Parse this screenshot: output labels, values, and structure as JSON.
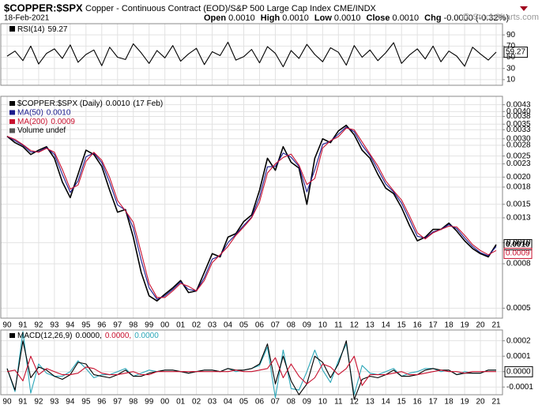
{
  "header": {
    "symbol": "$COPPER:$SPX",
    "description": "Copper - Continuous Contract (EOD)/S&P 500 Large Cap Index CME/INDX",
    "date": "18-Feb-2021",
    "quote": [
      {
        "label": "Open",
        "value": "0.0010"
      },
      {
        "label": "High",
        "value": "0.0010"
      },
      {
        "label": "Low",
        "value": "0.0010"
      },
      {
        "label": "Close",
        "value": "0.0010"
      },
      {
        "label": "Chg",
        "value": "-0.0000 (-0.32%)"
      }
    ],
    "watermark": "@ StockCharts.com"
  },
  "chart_data": [
    {
      "type": "line",
      "label": "RSI(14)",
      "grid": true,
      "x": [
        1990,
        1990.5,
        1991,
        1991.5,
        1992,
        1992.5,
        1993,
        1993.5,
        1994,
        1994.5,
        1995,
        1995.5,
        1996,
        1996.5,
        1997,
        1997.5,
        1998,
        1998.5,
        1999,
        1999.5,
        2000,
        2000.5,
        2001,
        2001.5,
        2002,
        2002.5,
        2003,
        2003.5,
        2004,
        2004.5,
        2005,
        2005.5,
        2006,
        2006.5,
        2007,
        2007.5,
        2008,
        2008.5,
        2009,
        2009.5,
        2010,
        2010.5,
        2011,
        2011.5,
        2012,
        2012.5,
        2013,
        2013.5,
        2014,
        2014.5,
        2015,
        2015.5,
        2016,
        2016.5,
        2017,
        2017.5,
        2018,
        2018.5,
        2019,
        2019.5,
        2020,
        2020.5,
        2021
      ],
      "xlim": [
        1989.6,
        2021.4
      ],
      "series": [
        {
          "color": "#000000",
          "legend_value": "59.27",
          "values": [
            52,
            61,
            44,
            70,
            38,
            57,
            65,
            48,
            72,
            41,
            55,
            63,
            35,
            68,
            50,
            46,
            74,
            58,
            39,
            62,
            49,
            71,
            43,
            56,
            66,
            37,
            60,
            53,
            77,
            45,
            51,
            64,
            40,
            69,
            57,
            33,
            62,
            48,
            73,
            55,
            42,
            67,
            59,
            36,
            71,
            50,
            63,
            44,
            58,
            76,
            39,
            54,
            65,
            47,
            70,
            42,
            61,
            52,
            34,
            68,
            56,
            45,
            59.27
          ]
        }
      ],
      "ylim": [
        0,
        110
      ],
      "yticks": [
        90,
        70,
        50,
        30,
        10
      ]
    },
    {
      "type": "line",
      "log_scale": true,
      "grid": true,
      "volume_legend": "Volume undef",
      "x": [
        1990,
        1990.5,
        1991,
        1991.5,
        1992,
        1992.5,
        1993,
        1993.5,
        1994,
        1994.5,
        1995,
        1995.5,
        1996,
        1996.5,
        1997,
        1997.5,
        1998,
        1998.5,
        1999,
        1999.5,
        2000,
        2000.5,
        2001,
        2001.5,
        2002,
        2002.5,
        2003,
        2003.5,
        2004,
        2004.5,
        2005,
        2005.5,
        2006,
        2006.5,
        2007,
        2007.5,
        2008,
        2008.5,
        2009,
        2009.5,
        2010,
        2010.5,
        2011,
        2011.5,
        2012,
        2012.5,
        2013,
        2013.5,
        2014,
        2014.5,
        2015,
        2015.5,
        2016,
        2016.5,
        2017,
        2017.5,
        2018,
        2018.5,
        2019,
        2019.5,
        2020,
        2020.5,
        2021
      ],
      "xlim": [
        1989.6,
        2021.4
      ],
      "xticks": [
        {
          "value": 1990,
          "label": "90"
        },
        {
          "value": 1991,
          "label": "91"
        },
        {
          "value": 1992,
          "label": "92"
        },
        {
          "value": 1993,
          "label": "93"
        },
        {
          "value": 1994,
          "label": "94"
        },
        {
          "value": 1995,
          "label": "95"
        },
        {
          "value": 1996,
          "label": "96"
        },
        {
          "value": 1997,
          "label": "97"
        },
        {
          "value": 1998,
          "label": "98"
        },
        {
          "value": 1999,
          "label": "99"
        },
        {
          "value": 2000,
          "label": "00"
        },
        {
          "value": 2001,
          "label": "01"
        },
        {
          "value": 2002,
          "label": "02"
        },
        {
          "value": 2003,
          "label": "03"
        },
        {
          "value": 2004,
          "label": "04"
        },
        {
          "value": 2005,
          "label": "05"
        },
        {
          "value": 2006,
          "label": "06"
        },
        {
          "value": 2007,
          "label": "07"
        },
        {
          "value": 2008,
          "label": "08"
        },
        {
          "value": 2009,
          "label": "09"
        },
        {
          "value": 2010,
          "label": "10"
        },
        {
          "value": 2011,
          "label": "11"
        },
        {
          "value": 2012,
          "label": "12"
        },
        {
          "value": 2013,
          "label": "13"
        },
        {
          "value": 2014,
          "label": "14"
        },
        {
          "value": 2015,
          "label": "15"
        },
        {
          "value": 2016,
          "label": "16"
        },
        {
          "value": 2017,
          "label": "17"
        },
        {
          "value": 2018,
          "label": "18"
        },
        {
          "value": 2019,
          "label": "19"
        },
        {
          "value": 2020,
          "label": "20"
        },
        {
          "value": 2021,
          "label": "21"
        }
      ],
      "series": [
        {
          "name": "$COPPER:$SPX (Daily)",
          "color": "#000000",
          "last_label": "0.0010",
          "legend_date": "(17 Feb)",
          "values": [
            0.00308,
            0.00288,
            0.00276,
            0.00254,
            0.00266,
            0.00276,
            0.00244,
            0.0019,
            0.00161,
            0.00206,
            0.00266,
            0.00254,
            0.00224,
            0.00174,
            0.00138,
            0.00142,
            0.00106,
            0.00073,
            0.00057,
            0.00054,
            0.00058,
            0.00062,
            0.00067,
            0.00059,
            0.0006,
            0.00073,
            0.00089,
            0.00086,
            0.00106,
            0.0011,
            0.00125,
            0.00134,
            0.00174,
            0.00244,
            0.00215,
            0.00276,
            0.00234,
            0.0022,
            0.0015,
            0.00244,
            0.003,
            0.00288,
            0.00326,
            0.00346,
            0.00313,
            0.00266,
            0.00244,
            0.00206,
            0.00178,
            0.00168,
            0.00145,
            0.0012,
            0.00102,
            0.00106,
            0.00115,
            0.00115,
            0.00123,
            0.00113,
            0.00102,
            0.00094,
            0.00089,
            0.00086,
            0.00098
          ]
        },
        {
          "name": "MA(50)",
          "color": "#1a1a8c",
          "legend_value": "0.0010",
          "values": [
            0.00308,
            0.00294,
            0.0028,
            0.00261,
            0.00262,
            0.00273,
            0.00254,
            0.00206,
            0.0017,
            0.00192,
            0.00248,
            0.00258,
            0.00233,
            0.00189,
            0.00149,
            0.00141,
            0.00117,
            0.00083,
            0.00062,
            0.00055,
            0.00057,
            0.00061,
            0.00066,
            0.00061,
            0.0006,
            0.00069,
            0.00084,
            0.00087,
            0.001,
            0.00109,
            0.0012,
            0.00131,
            0.00162,
            0.00223,
            0.00224,
            0.00258,
            0.00247,
            0.00224,
            0.00171,
            0.00216,
            0.00283,
            0.00292,
            0.00315,
            0.0034,
            0.00323,
            0.0028,
            0.00251,
            0.00217,
            0.00186,
            0.00171,
            0.00152,
            0.00128,
            0.00107,
            0.00105,
            0.00112,
            0.00115,
            0.00121,
            0.00116,
            0.00105,
            0.00096,
            0.0009,
            0.00087,
            0.00096
          ]
        },
        {
          "name": "MA(200)",
          "color": "#c8102e",
          "legend_value": "0.0009",
          "values": [
            0.00308,
            0.00298,
            0.00282,
            0.00265,
            0.0026,
            0.00271,
            0.0026,
            0.00217,
            0.00176,
            0.00184,
            0.00236,
            0.0026,
            0.00239,
            0.00199,
            0.00156,
            0.0014,
            0.00124,
            0.0009,
            0.00065,
            0.00056,
            0.00056,
            0.0006,
            0.00065,
            0.00063,
            0.0006,
            0.00067,
            0.00081,
            0.00088,
            0.00096,
            0.00108,
            0.00118,
            0.0013,
            0.00154,
            0.00209,
            0.0023,
            0.00246,
            0.00255,
            0.00227,
            0.00185,
            0.00197,
            0.00272,
            0.00294,
            0.00307,
            0.00336,
            0.0033,
            0.0029,
            0.00255,
            0.00225,
            0.00192,
            0.00173,
            0.00157,
            0.00133,
            0.00111,
            0.00104,
            0.00111,
            0.00115,
            0.00119,
            0.00118,
            0.00108,
            0.00098,
            0.00092,
            0.00088,
            0.00092
          ]
        }
      ],
      "ylim": [
        0.00045,
        0.0047
      ],
      "yticks": [
        0.0043,
        {
          "value": 0.004,
          "label": "0.0040"
        },
        0.0038,
        0.0035,
        0.0033,
        {
          "value": 0.003,
          "label": "0.0030"
        },
        0.0028,
        0.0025,
        0.0023,
        {
          "value": 0.002,
          "label": "0.0020"
        },
        0.0018,
        0.0015,
        0.0013,
        {
          "value": 0.001,
          "label": "0.0010"
        },
        0.0008,
        0.0005
      ]
    },
    {
      "type": "line",
      "label": "MACD(12,26,9)",
      "grid": true,
      "x": [
        1990,
        1990.5,
        1991,
        1991.5,
        1992,
        1992.5,
        1993,
        1993.5,
        1994,
        1994.5,
        1995,
        1995.5,
        1996,
        1996.5,
        1997,
        1997.5,
        1998,
        1998.5,
        1999,
        1999.5,
        2000,
        2000.5,
        2001,
        2001.5,
        2002,
        2002.5,
        2003,
        2003.5,
        2004,
        2004.5,
        2005,
        2005.5,
        2006,
        2006.5,
        2007,
        2007.5,
        2008,
        2008.5,
        2009,
        2009.5,
        2010,
        2010.5,
        2011,
        2011.5,
        2012,
        2012.5,
        2013,
        2013.5,
        2014,
        2014.5,
        2015,
        2015.5,
        2016,
        2016.5,
        2017,
        2017.5,
        2018,
        2018.5,
        2019,
        2019.5,
        2020,
        2020.5,
        2021
      ],
      "xlim": [
        1989.6,
        2021.4
      ],
      "xticks": [
        {
          "value": 1990,
          "label": "90"
        },
        {
          "value": 1991,
          "label": "91"
        },
        {
          "value": 1992,
          "label": "92"
        },
        {
          "value": 1993,
          "label": "93"
        },
        {
          "value": 1994,
          "label": "94"
        },
        {
          "value": 1995,
          "label": "95"
        },
        {
          "value": 1996,
          "label": "96"
        },
        {
          "value": 1997,
          "label": "97"
        },
        {
          "value": 1998,
          "label": "98"
        },
        {
          "value": 1999,
          "label": "99"
        },
        {
          "value": 2000,
          "label": "00"
        },
        {
          "value": 2001,
          "label": "01"
        },
        {
          "value": 2002,
          "label": "02"
        },
        {
          "value": 2003,
          "label": "03"
        },
        {
          "value": 2004,
          "label": "04"
        },
        {
          "value": 2005,
          "label": "05"
        },
        {
          "value": 2006,
          "label": "06"
        },
        {
          "value": 2007,
          "label": "07"
        },
        {
          "value": 2008,
          "label": "08"
        },
        {
          "value": 2009,
          "label": "09"
        },
        {
          "value": 2010,
          "label": "10"
        },
        {
          "value": 2011,
          "label": "11"
        },
        {
          "value": 2012,
          "label": "12"
        },
        {
          "value": 2013,
          "label": "13"
        },
        {
          "value": 2014,
          "label": "14"
        },
        {
          "value": 2015,
          "label": "15"
        },
        {
          "value": 2016,
          "label": "16"
        },
        {
          "value": 2017,
          "label": "17"
        },
        {
          "value": 2018,
          "label": "18"
        },
        {
          "value": 2019,
          "label": "19"
        },
        {
          "value": 2020,
          "label": "20"
        },
        {
          "value": 2021,
          "label": "21"
        }
      ],
      "series": [
        {
          "color": "#2aa6b8",
          "legend_value": "0.0000",
          "values": [
            2e-05,
            -0.00013,
            0.00026,
            -0.00014,
            5e-05,
            -1e-05,
            -3e-05,
            -3e-05,
            0,
            7e-05,
            2e-05,
            -4e-05,
            -2e-05,
            -2e-05,
            0,
            2e-05,
            -3e-05,
            -1e-05,
            1e-05,
            0,
            1e-05,
            1e-05,
            0,
            -1e-05,
            0,
            1e-05,
            1e-05,
            0,
            2e-05,
            0,
            1e-05,
            2e-05,
            4e-05,
            0.00016,
            -0.00017,
            0.00014,
            -0.00011,
            -0.00012,
            0,
            0.00014,
            1e-05,
            -7e-05,
            7e-05,
            0.00018,
            -0.00015,
            4e-05,
            -1e-05,
            -2e-05,
            0,
            2e-05,
            -3e-05,
            -1e-05,
            0,
            2e-05,
            2e-05,
            0,
            1e-05,
            -2e-05,
            0,
            -1e-05,
            -1e-05,
            1e-05,
            1e-05
          ]
        },
        {
          "color": "#000000",
          "legend_value": "0.0000,",
          "values": [
            2e-05,
            -0.00012,
            0.0002,
            -4e-05,
            3e-05,
            1e-05,
            -3e-05,
            -5e-05,
            -2e-05,
            6e-05,
            5e-05,
            -2e-05,
            -3e-05,
            -4e-05,
            -2e-05,
            1e-05,
            -3e-05,
            -3e-05,
            -1e-05,
            0,
            1e-05,
            1e-05,
            0,
            -1e-05,
            0,
            1e-05,
            1e-05,
            0,
            2e-05,
            1e-05,
            1e-05,
            2e-05,
            5e-05,
            0.00018,
            -8e-05,
            0.0001,
            -6e-05,
            -0.00015,
            -8e-05,
            0.0001,
            6e-05,
            -4e-05,
            5e-05,
            0.0002,
            -0.00018,
            -5e-05,
            -3e-05,
            -4e-05,
            -2e-05,
            1e-05,
            -3e-05,
            -3e-05,
            -2e-05,
            1e-05,
            2e-05,
            1e-05,
            1e-05,
            -2e-05,
            -1e-05,
            -1e-05,
            -1e-05,
            1e-05,
            1e-05
          ]
        },
        {
          "color": "#c8102e",
          "legend_value": "0.0000,",
          "values": [
            0,
            1e-05,
            -6e-05,
            0.0001,
            -2e-05,
            2e-05,
            0,
            -2e-05,
            -2e-05,
            -1e-05,
            3e-05,
            2e-05,
            -1e-05,
            -2e-05,
            -2e-05,
            -1e-05,
            0,
            -2e-05,
            -2e-05,
            0,
            0,
            0,
            0,
            0,
            0,
            0,
            0,
            0,
            0,
            1e-05,
            0,
            0,
            1e-05,
            2e-05,
            9e-05,
            -4e-05,
            5e-05,
            -3e-05,
            -8e-05,
            -4e-05,
            5e-05,
            3e-05,
            -2e-05,
            2e-05,
            0.0001,
            -9e-05,
            -2e-05,
            -2e-05,
            -2e-05,
            -1e-05,
            0,
            -2e-05,
            -2e-05,
            -1e-05,
            0,
            1e-05,
            0,
            0,
            -1e-05,
            0,
            0,
            0,
            0
          ]
        }
      ],
      "ylim": [
        -0.00015,
        0.00027
      ],
      "yticks": [
        0.0002,
        0.0001,
        {
          "value": 0,
          "label": "0.0000"
        },
        -0.0001
      ]
    }
  ]
}
